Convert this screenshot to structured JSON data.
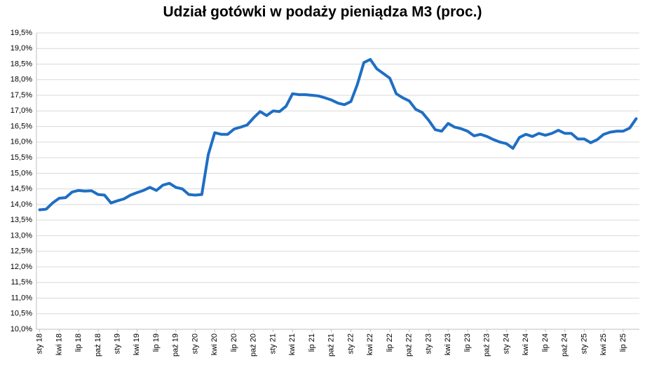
{
  "chart_data": {
    "type": "line",
    "title": "Udział gotówki w podaży pieniądza M3 (proc.)",
    "categories": [
      "sty 18",
      null,
      null,
      "kwi 18",
      null,
      null,
      "lip 18",
      null,
      null,
      "paź 18",
      null,
      null,
      "sty 19",
      null,
      null,
      "kwi 19",
      null,
      null,
      "lip 19",
      null,
      null,
      "paź 19",
      null,
      null,
      "sty 20",
      null,
      null,
      "kwi 20",
      null,
      null,
      "lip 20",
      null,
      null,
      "paź 20",
      null,
      null,
      "sty 21",
      null,
      null,
      "kwi 21",
      null,
      null,
      "lip 21",
      null,
      null,
      "paź 21",
      null,
      null,
      "sty 22",
      null,
      null,
      "kwi 22",
      null,
      null,
      "lip 22",
      null,
      null,
      "paź 22",
      null,
      null,
      "sty 23",
      null,
      null,
      "kwi 23",
      null,
      null,
      "lip 23",
      null,
      null,
      "paź 23",
      null,
      null,
      "sty 24",
      null,
      null,
      "kwi 24",
      null,
      null,
      "lip 24",
      null,
      null,
      "paź 24",
      null,
      null,
      "sty 25",
      null,
      null,
      "kwi 25",
      null,
      null,
      "lip 25",
      null,
      null
    ],
    "values": [
      13.83,
      13.85,
      14.05,
      14.2,
      14.22,
      14.4,
      14.45,
      14.43,
      14.44,
      14.32,
      14.3,
      14.05,
      14.12,
      14.18,
      14.3,
      14.38,
      14.45,
      14.55,
      14.45,
      14.62,
      14.68,
      14.55,
      14.5,
      14.32,
      14.3,
      14.32,
      15.6,
      16.3,
      16.25,
      16.25,
      16.42,
      16.48,
      16.55,
      16.78,
      16.98,
      16.85,
      17.0,
      16.98,
      17.15,
      17.55,
      17.52,
      17.52,
      17.5,
      17.48,
      17.42,
      17.35,
      17.25,
      17.2,
      17.3,
      17.85,
      18.55,
      18.65,
      18.35,
      18.2,
      18.05,
      17.55,
      17.42,
      17.32,
      17.05,
      16.95,
      16.7,
      16.4,
      16.35,
      16.6,
      16.48,
      16.43,
      16.35,
      16.2,
      16.25,
      16.18,
      16.08,
      16.0,
      15.95,
      15.8,
      16.15,
      16.25,
      16.18,
      16.28,
      16.22,
      16.28,
      16.38,
      16.28,
      16.28,
      16.1,
      16.1,
      15.98,
      16.08,
      16.25,
      16.32,
      16.35,
      16.35,
      16.45,
      16.75
    ],
    "color": "#1f6ec4",
    "ylim": [
      10,
      19.5
    ],
    "yticks": [
      {
        "value": 10,
        "label": "10,0%"
      },
      {
        "value": 10.5,
        "label": "10,5%"
      },
      {
        "value": 11,
        "label": "11,0%"
      },
      {
        "value": 11.5,
        "label": "11,5%"
      },
      {
        "value": 12,
        "label": "12,0%"
      },
      {
        "value": 12.5,
        "label": "12,5%"
      },
      {
        "value": 13,
        "label": "13,0%"
      },
      {
        "value": 13.5,
        "label": "13,5%"
      },
      {
        "value": 14,
        "label": "14,0%"
      },
      {
        "value": 14.5,
        "label": "14,5%"
      },
      {
        "value": 15,
        "label": "15,0%"
      },
      {
        "value": 15.5,
        "label": "15,5%"
      },
      {
        "value": 16,
        "label": "16,0%"
      },
      {
        "value": 16.5,
        "label": "16,5%"
      },
      {
        "value": 17,
        "label": "17,0%"
      },
      {
        "value": 17.5,
        "label": "17,5%"
      },
      {
        "value": 18,
        "label": "18,0%"
      },
      {
        "value": 18.5,
        "label": "18,5%"
      },
      {
        "value": 19,
        "label": "19,0%"
      },
      {
        "value": 19.5,
        "label": "19,5%"
      }
    ],
    "grid": true
  }
}
